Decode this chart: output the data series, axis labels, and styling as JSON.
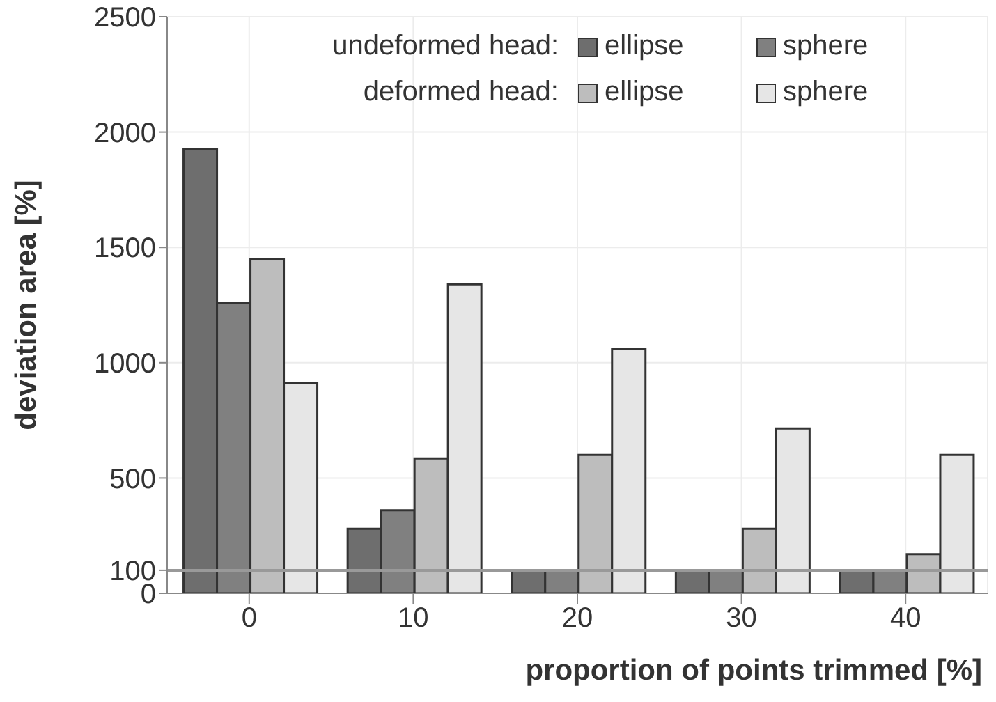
{
  "chart_data": {
    "type": "bar",
    "xlabel": "proportion of points trimmed [%]",
    "ylabel": "deviation area [%]",
    "categories": [
      "0",
      "10",
      "20",
      "30",
      "40"
    ],
    "series": [
      {
        "name": "ellipse",
        "color": "#6e6e6e",
        "values": [
          1925,
          280,
          100,
          100,
          100
        ]
      },
      {
        "name": "sphere",
        "color": "#808080",
        "values": [
          1260,
          360,
          100,
          100,
          100
        ]
      },
      {
        "name": "ellipse",
        "color": "#bdbdbd",
        "values": [
          1450,
          585,
          600,
          280,
          170
        ]
      },
      {
        "name": "sphere",
        "color": "#e6e6e6",
        "values": [
          910,
          1340,
          1060,
          715,
          600
        ]
      }
    ],
    "annotations": [
      "undeformed head:",
      "deformed head:"
    ],
    "ylim": [
      0,
      2500
    ],
    "yticks": [
      0,
      100,
      500,
      1000,
      1500,
      2000,
      2500
    ],
    "ref_lines": [
      {
        "axis": "y",
        "value": 100,
        "color": "#999999"
      }
    ],
    "grid": true,
    "legend": "top right"
  }
}
